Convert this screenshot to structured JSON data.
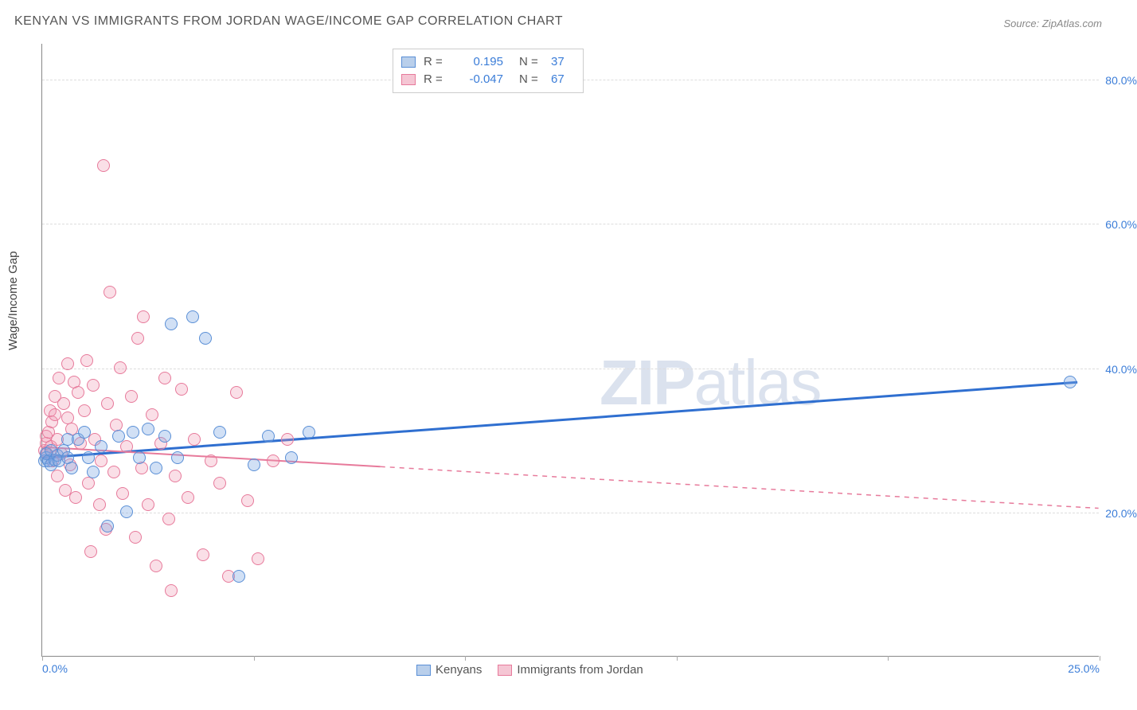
{
  "title": "KENYAN VS IMMIGRANTS FROM JORDAN WAGE/INCOME GAP CORRELATION CHART",
  "source": "Source: ZipAtlas.com",
  "watermark": {
    "bold": "ZIP",
    "rest": "atlas"
  },
  "ylabel": "Wage/Income Gap",
  "chart": {
    "type": "scatter-with-regression",
    "xlim": [
      0,
      25
    ],
    "ylim": [
      0,
      85
    ],
    "x_ticks": [
      0,
      5,
      10,
      15,
      20,
      25
    ],
    "x_tick_labels": [
      "0.0%",
      "",
      "",
      "",
      "",
      "25.0%"
    ],
    "y_gridlines": [
      20,
      40,
      60,
      80
    ],
    "y_tick_labels": [
      "20.0%",
      "40.0%",
      "60.0%",
      "80.0%"
    ],
    "background_color": "#ffffff",
    "grid_color": "#dddddd",
    "axis_color": "#888888",
    "label_color": "#3b7dd8"
  },
  "series": [
    {
      "name": "Kenyans",
      "color_fill": "rgba(123,167,227,0.35)",
      "color_stroke": "#5a8fd6",
      "swatch_fill": "#b9cfeb",
      "swatch_stroke": "#5a8fd6",
      "marker_radius": 8,
      "regression": {
        "R": "0.195",
        "N": "37",
        "line_color": "#2f6fd0",
        "line_width": 3,
        "x1": 0,
        "y1": 27.5,
        "x2": 24.5,
        "y2": 38,
        "dash_after_x": null
      },
      "points": [
        [
          0.05,
          27
        ],
        [
          0.1,
          27.5
        ],
        [
          0.1,
          28
        ],
        [
          0.15,
          27
        ],
        [
          0.2,
          26.5
        ],
        [
          0.2,
          28.5
        ],
        [
          0.3,
          27.2
        ],
        [
          0.35,
          27.8
        ],
        [
          0.4,
          27
        ],
        [
          0.5,
          28.5
        ],
        [
          0.6,
          30
        ],
        [
          0.6,
          27.5
        ],
        [
          0.7,
          26
        ],
        [
          0.85,
          30
        ],
        [
          1.0,
          31
        ],
        [
          1.1,
          27.5
        ],
        [
          1.2,
          25.5
        ],
        [
          1.4,
          29
        ],
        [
          1.55,
          18
        ],
        [
          1.8,
          30.5
        ],
        [
          2.0,
          20
        ],
        [
          2.15,
          31
        ],
        [
          2.3,
          27.5
        ],
        [
          2.5,
          31.5
        ],
        [
          2.7,
          26
        ],
        [
          2.9,
          30.5
        ],
        [
          3.05,
          46
        ],
        [
          3.2,
          27.5
        ],
        [
          3.55,
          47
        ],
        [
          3.85,
          44
        ],
        [
          4.2,
          31
        ],
        [
          4.65,
          11
        ],
        [
          5.0,
          26.5
        ],
        [
          5.35,
          30.5
        ],
        [
          5.9,
          27.5
        ],
        [
          6.3,
          31
        ],
        [
          24.3,
          38
        ]
      ]
    },
    {
      "name": "Immigrants from Jordan",
      "color_fill": "rgba(240,150,175,0.3)",
      "color_stroke": "#e77a9b",
      "swatch_fill": "#f5c6d4",
      "swatch_stroke": "#e77a9b",
      "marker_radius": 8,
      "regression": {
        "R": "-0.047",
        "N": "67",
        "line_color": "#e77a9b",
        "line_width": 2,
        "x1": 0,
        "y1": 29,
        "x2": 25,
        "y2": 20.5,
        "dash_after_x": 8.0
      },
      "points": [
        [
          0.05,
          28.5
        ],
        [
          0.1,
          29.5
        ],
        [
          0.1,
          30.5
        ],
        [
          0.12,
          28
        ],
        [
          0.15,
          31
        ],
        [
          0.18,
          34
        ],
        [
          0.2,
          29
        ],
        [
          0.22,
          32.5
        ],
        [
          0.25,
          27
        ],
        [
          0.3,
          33.5
        ],
        [
          0.3,
          36
        ],
        [
          0.35,
          25
        ],
        [
          0.35,
          30
        ],
        [
          0.4,
          38.5
        ],
        [
          0.45,
          28
        ],
        [
          0.5,
          35
        ],
        [
          0.55,
          23
        ],
        [
          0.6,
          40.5
        ],
        [
          0.6,
          33
        ],
        [
          0.65,
          26.5
        ],
        [
          0.7,
          31.5
        ],
        [
          0.75,
          38
        ],
        [
          0.8,
          22
        ],
        [
          0.85,
          36.5
        ],
        [
          0.9,
          29.5
        ],
        [
          1.0,
          34
        ],
        [
          1.05,
          41
        ],
        [
          1.1,
          24
        ],
        [
          1.15,
          14.5
        ],
        [
          1.2,
          37.5
        ],
        [
          1.25,
          30
        ],
        [
          1.35,
          21
        ],
        [
          1.4,
          27
        ],
        [
          1.45,
          68
        ],
        [
          1.5,
          17.5
        ],
        [
          1.55,
          35
        ],
        [
          1.6,
          50.5
        ],
        [
          1.7,
          25.5
        ],
        [
          1.75,
          32
        ],
        [
          1.85,
          40
        ],
        [
          1.9,
          22.5
        ],
        [
          2.0,
          29
        ],
        [
          2.1,
          36
        ],
        [
          2.2,
          16.5
        ],
        [
          2.25,
          44
        ],
        [
          2.35,
          26
        ],
        [
          2.4,
          47
        ],
        [
          2.5,
          21
        ],
        [
          2.6,
          33.5
        ],
        [
          2.7,
          12.5
        ],
        [
          2.8,
          29.5
        ],
        [
          2.9,
          38.5
        ],
        [
          3.0,
          19
        ],
        [
          3.15,
          25
        ],
        [
          3.3,
          37
        ],
        [
          3.45,
          22
        ],
        [
          3.6,
          30
        ],
        [
          3.8,
          14
        ],
        [
          4.0,
          27
        ],
        [
          4.2,
          24
        ],
        [
          4.4,
          11
        ],
        [
          4.6,
          36.5
        ],
        [
          4.85,
          21.5
        ],
        [
          5.1,
          13.5
        ],
        [
          5.45,
          27
        ],
        [
          5.8,
          30
        ],
        [
          3.05,
          9
        ]
      ]
    }
  ],
  "legend_top": [
    {
      "series_idx": 0
    },
    {
      "series_idx": 1
    }
  ],
  "legend_bottom": [
    {
      "series_idx": 0
    },
    {
      "series_idx": 1
    }
  ]
}
